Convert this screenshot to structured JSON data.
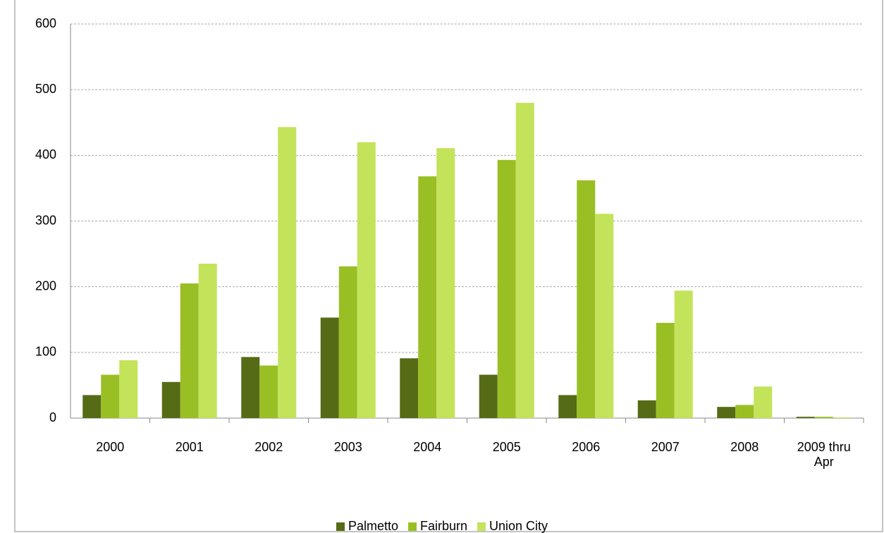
{
  "chart_data": {
    "type": "bar",
    "categories": [
      "2000",
      "2001",
      "2002",
      "2003",
      "2004",
      "2005",
      "2006",
      "2007",
      "2008",
      "2009 thru Apr"
    ],
    "series": [
      {
        "name": "Palmetto",
        "color": "#556b16",
        "values": [
          35,
          55,
          93,
          153,
          91,
          66,
          35,
          27,
          17,
          2
        ]
      },
      {
        "name": "Fairburn",
        "color": "#9abf25",
        "values": [
          66,
          205,
          80,
          231,
          368,
          393,
          362,
          145,
          20,
          2
        ]
      },
      {
        "name": "Union City",
        "color": "#c3e35a",
        "values": [
          88,
          235,
          443,
          420,
          411,
          480,
          311,
          194,
          48,
          1
        ]
      }
    ],
    "ylim": [
      0,
      600
    ],
    "yticks": [
      0,
      100,
      200,
      300,
      400,
      500,
      600
    ],
    "grid": true,
    "legend": "bottom"
  }
}
